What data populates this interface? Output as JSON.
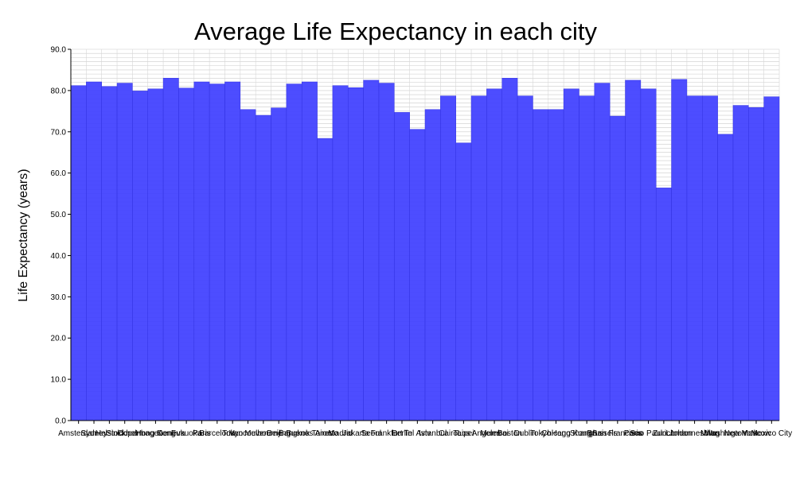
{
  "chart_data": {
    "type": "bar",
    "title": "Average Life Expectancy in each city",
    "xlabel": "",
    "ylabel": "Life Expectancy (years)",
    "ylim": [
      0,
      90
    ],
    "yticks": [
      "0.0",
      "10.0",
      "20.0",
      "30.0",
      "40.0",
      "50.0",
      "60.0",
      "70.0",
      "80.0",
      "90.0"
    ],
    "grid": true,
    "bar_color": "#4040ff",
    "categories": [
      "Amsterdam",
      "Sydney",
      "Helsinki",
      "Stockholm",
      "Copenhagen",
      "Hong Kong",
      "Geneva",
      "Fukuoka",
      "Paris",
      "Barcelona",
      "Tokyo",
      "Vancouver",
      "Melbourne",
      "Beijing",
      "Bangkok",
      "Buenos Aires",
      "Toronto",
      "Madrid",
      "Jakarta",
      "Seoul",
      "Frankfurt",
      "Berlin",
      "Tel Aviv",
      "Istanbul",
      "Cairo",
      "Taipei",
      "Los Angeles",
      "Mumbai",
      "Boston",
      "Dublin",
      "Tokyo",
      "Chicago",
      "Hong Kong",
      "Shanghai",
      "Brussels",
      "San Francisco",
      "Paris",
      "Sao Paulo",
      "Zurich",
      "London",
      "Johannesburg",
      "Milan",
      "Washington",
      "New York",
      "Moscow",
      "Mexico City"
    ],
    "values": [
      81.2,
      82.1,
      81.0,
      81.8,
      79.9,
      80.4,
      83.0,
      80.6,
      82.1,
      81.6,
      82.1,
      75.4,
      74.0,
      75.8,
      81.6,
      82.1,
      68.4,
      81.2,
      80.7,
      82.5,
      81.8,
      74.7,
      70.6,
      75.4,
      78.7,
      67.3,
      78.7,
      80.4,
      83.0,
      78.7,
      75.4,
      75.4,
      80.4,
      78.7,
      81.8,
      73.8,
      82.5,
      80.4,
      56.4,
      82.7,
      78.7,
      78.7,
      69.4,
      76.4,
      75.9,
      78.5
    ]
  }
}
